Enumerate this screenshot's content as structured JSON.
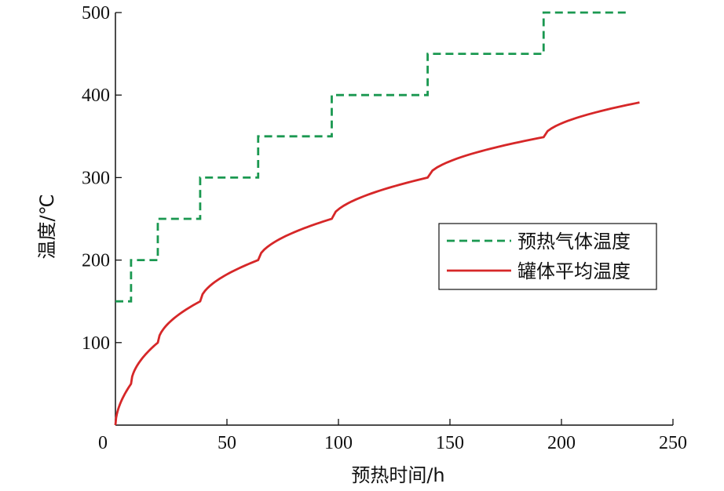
{
  "chart_data": {
    "type": "line",
    "xlabel": "预热时间/h",
    "ylabel": "温度/℃",
    "xlim": [
      0,
      250
    ],
    "ylim": [
      0,
      500
    ],
    "xticks": [
      0,
      50,
      100,
      150,
      200,
      250
    ],
    "yticks": [
      100,
      200,
      300,
      400,
      500
    ],
    "grid": false,
    "legend_position": "center-right",
    "series": [
      {
        "name": "预热气体温度",
        "color": "#1a9850",
        "style": "dashed",
        "step": true,
        "steps": [
          {
            "x0": 0,
            "x1": 7,
            "y": 150
          },
          {
            "x0": 7,
            "x1": 19,
            "y": 200
          },
          {
            "x0": 19,
            "x1": 38,
            "y": 250
          },
          {
            "x0": 38,
            "x1": 64,
            "y": 300
          },
          {
            "x0": 64,
            "x1": 97,
            "y": 350
          },
          {
            "x0": 97,
            "x1": 140,
            "y": 400
          },
          {
            "x0": 140,
            "x1": 192,
            "y": 450
          },
          {
            "x0": 192,
            "x1": 230,
            "y": 500
          }
        ]
      },
      {
        "name": "罐体平均温度",
        "color": "#d62728",
        "style": "solid",
        "segments": [
          {
            "x0": 0,
            "x1": 7,
            "y0": 0,
            "y1": 50
          },
          {
            "x0": 7,
            "x1": 19,
            "y0": 50,
            "y1": 100
          },
          {
            "x0": 19,
            "x1": 38,
            "y0": 100,
            "y1": 150
          },
          {
            "x0": 38,
            "x1": 64,
            "y0": 150,
            "y1": 200
          },
          {
            "x0": 64,
            "x1": 97,
            "y0": 200,
            "y1": 250
          },
          {
            "x0": 97,
            "x1": 140,
            "y0": 250,
            "y1": 300
          },
          {
            "x0": 140,
            "x1": 192,
            "y0": 300,
            "y1": 349
          },
          {
            "x0": 192,
            "x1": 235,
            "y0": 349,
            "y1": 391
          }
        ]
      }
    ]
  }
}
